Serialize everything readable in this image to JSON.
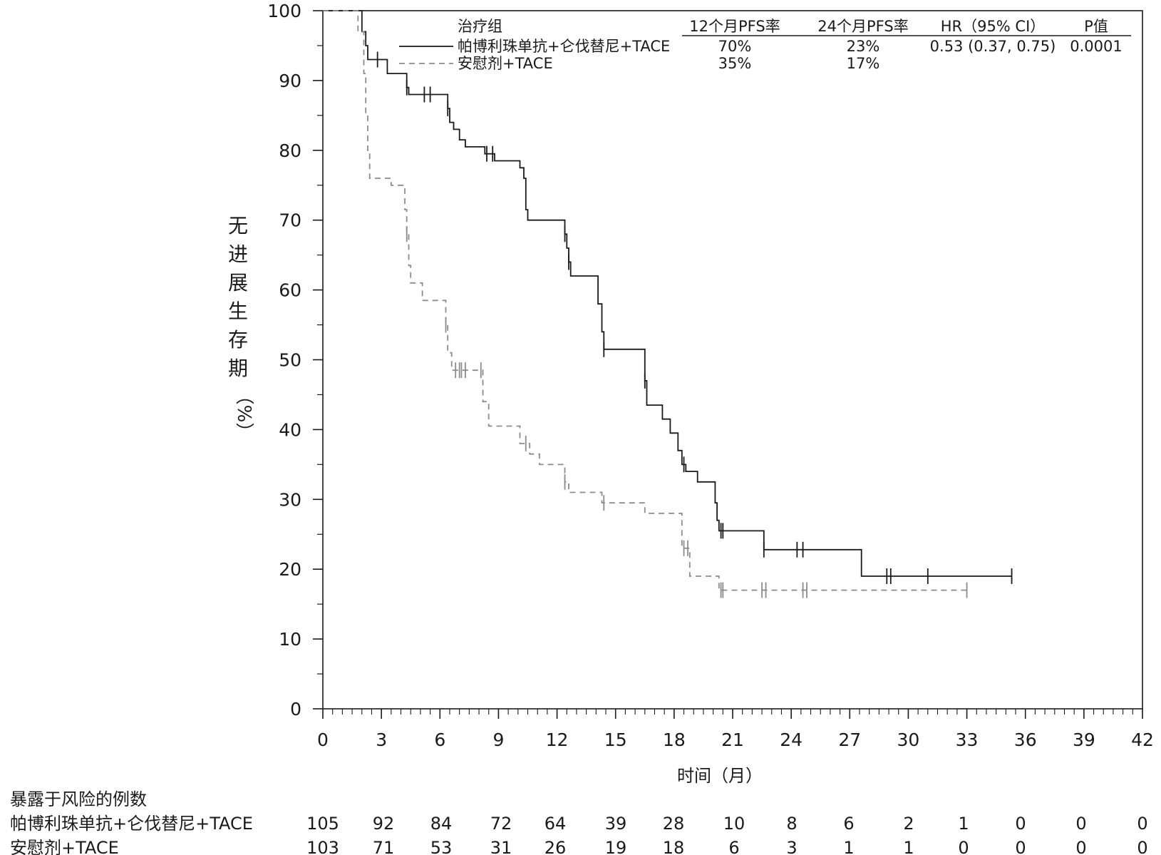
{
  "chart_data": {
    "type": "line",
    "step": true,
    "ylabel_chars": [
      "无",
      "进",
      "展",
      "生",
      "存",
      "期"
    ],
    "ylabel_unit": "（%）",
    "xlabel": "时间（月）",
    "xlim": [
      0,
      42
    ],
    "ylim": [
      0,
      100
    ],
    "x_ticks": [
      0,
      3,
      6,
      9,
      12,
      15,
      18,
      21,
      24,
      27,
      30,
      33,
      36,
      39,
      42
    ],
    "y_ticks": [
      0,
      10,
      20,
      30,
      40,
      50,
      60,
      70,
      80,
      90,
      100
    ],
    "grid": false,
    "legend_placement": "top",
    "legend": {
      "header_group": "治疗组",
      "header_pfs12": "12个月PFS率",
      "header_pfs24": "24个月PFS率",
      "header_hr": "HR（95% CI）",
      "header_p": "P值",
      "hr_value": "0.53 (0.37, 0.75)",
      "p_value": "0.0001"
    },
    "series": [
      {
        "name": "帕博利珠单抗+仑伐替尼+TACE",
        "color": "#1a1a1a",
        "dash": "none",
        "pfs12": "70%",
        "pfs24": "23%",
        "points": [
          [
            0,
            100
          ],
          [
            2,
            100
          ],
          [
            2,
            97
          ],
          [
            2.2,
            97
          ],
          [
            2.2,
            95
          ],
          [
            2.3,
            95
          ],
          [
            2.3,
            93
          ],
          [
            3.3,
            93
          ],
          [
            3.3,
            91
          ],
          [
            4.3,
            91
          ],
          [
            4.3,
            89
          ],
          [
            4.4,
            89
          ],
          [
            4.4,
            88
          ],
          [
            6.4,
            88
          ],
          [
            6.4,
            86
          ],
          [
            6.5,
            86
          ],
          [
            6.5,
            84
          ],
          [
            6.7,
            84
          ],
          [
            6.7,
            83
          ],
          [
            7,
            83
          ],
          [
            7,
            81.5
          ],
          [
            7.3,
            81.5
          ],
          [
            7.3,
            80.5
          ],
          [
            8.3,
            80.5
          ],
          [
            8.3,
            79.5
          ],
          [
            8.8,
            79.5
          ],
          [
            8.8,
            78.5
          ],
          [
            10.1,
            78.5
          ],
          [
            10.1,
            77.5
          ],
          [
            10.3,
            77.5
          ],
          [
            10.3,
            76
          ],
          [
            10.4,
            76
          ],
          [
            10.4,
            71.5
          ],
          [
            10.5,
            71.5
          ],
          [
            10.5,
            70
          ],
          [
            12.4,
            70
          ],
          [
            12.4,
            68
          ],
          [
            12.5,
            68
          ],
          [
            12.5,
            66
          ],
          [
            12.6,
            66
          ],
          [
            12.6,
            64
          ],
          [
            12.7,
            64
          ],
          [
            12.7,
            62
          ],
          [
            14.1,
            62
          ],
          [
            14.1,
            58
          ],
          [
            14.3,
            58
          ],
          [
            14.3,
            54
          ],
          [
            14.4,
            54
          ],
          [
            14.4,
            51.5
          ],
          [
            16.5,
            51.5
          ],
          [
            16.5,
            47
          ],
          [
            16.6,
            47
          ],
          [
            16.6,
            43.5
          ],
          [
            17.4,
            43.5
          ],
          [
            17.4,
            41.5
          ],
          [
            17.8,
            41.5
          ],
          [
            17.8,
            39.5
          ],
          [
            18.2,
            39.5
          ],
          [
            18.2,
            37
          ],
          [
            18.4,
            37
          ],
          [
            18.4,
            35
          ],
          [
            18.6,
            35
          ],
          [
            18.6,
            34
          ],
          [
            19.2,
            34
          ],
          [
            19.2,
            32.5
          ],
          [
            20.1,
            32.5
          ],
          [
            20.1,
            29.5
          ],
          [
            20.2,
            29.5
          ],
          [
            20.2,
            27
          ],
          [
            20.3,
            27
          ],
          [
            20.3,
            25.5
          ],
          [
            22.6,
            25.5
          ],
          [
            22.6,
            22.8
          ],
          [
            27.6,
            22.8
          ],
          [
            27.6,
            19
          ],
          [
            35.3,
            19
          ]
        ],
        "censor_x": [
          2.8,
          4.3,
          5.2,
          5.5,
          6.4,
          8.4,
          8.7,
          12.4,
          12.6,
          14.4,
          16.5,
          18.5,
          20.4,
          20.5,
          22.6,
          24.3,
          24.6,
          28.9,
          29.1,
          31.0,
          35.3
        ]
      },
      {
        "name": "安慰剂+TACE",
        "color": "#8c8c8c",
        "dash": "8,6",
        "pfs12": "35%",
        "pfs24": "17%",
        "points": [
          [
            0,
            100
          ],
          [
            1.8,
            100
          ],
          [
            1.8,
            97
          ],
          [
            2.1,
            97
          ],
          [
            2.1,
            91
          ],
          [
            2.2,
            91
          ],
          [
            2.2,
            85
          ],
          [
            2.3,
            85
          ],
          [
            2.3,
            80
          ],
          [
            2.4,
            80
          ],
          [
            2.4,
            76
          ],
          [
            3.5,
            76
          ],
          [
            3.5,
            75
          ],
          [
            4.2,
            75
          ],
          [
            4.2,
            71.5
          ],
          [
            4.3,
            71.5
          ],
          [
            4.3,
            68
          ],
          [
            4.4,
            68
          ],
          [
            4.4,
            63.5
          ],
          [
            4.5,
            63.5
          ],
          [
            4.5,
            61
          ],
          [
            5.1,
            61
          ],
          [
            5.1,
            58.5
          ],
          [
            6.3,
            58.5
          ],
          [
            6.3,
            55
          ],
          [
            6.4,
            55
          ],
          [
            6.4,
            51
          ],
          [
            6.6,
            51
          ],
          [
            6.6,
            48.5
          ],
          [
            8.2,
            48.5
          ],
          [
            8.2,
            44
          ],
          [
            8.5,
            44
          ],
          [
            8.5,
            40.5
          ],
          [
            10.1,
            40.5
          ],
          [
            10.1,
            38
          ],
          [
            10.6,
            38
          ],
          [
            10.6,
            36.5
          ],
          [
            11.1,
            36.5
          ],
          [
            11.1,
            35
          ],
          [
            12.4,
            35
          ],
          [
            12.4,
            32.5
          ],
          [
            12.6,
            32.5
          ],
          [
            12.6,
            31
          ],
          [
            14.3,
            31
          ],
          [
            14.3,
            29.5
          ],
          [
            16.5,
            29.5
          ],
          [
            16.5,
            28
          ],
          [
            18.4,
            28
          ],
          [
            18.4,
            23
          ],
          [
            18.8,
            23
          ],
          [
            18.8,
            19
          ],
          [
            20.3,
            19
          ],
          [
            20.3,
            17
          ],
          [
            33,
            17
          ]
        ],
        "censor_x": [
          4.3,
          6.3,
          6.8,
          7.0,
          7.1,
          7.3,
          8.1,
          10.4,
          12.4,
          14.4,
          18.5,
          18.7,
          20.4,
          20.5,
          22.5,
          22.7,
          24.6,
          24.8,
          33.0
        ]
      }
    ],
    "risk_table": {
      "title": "暴露于风险的例数",
      "rows": [
        {
          "name": "帕博利珠单抗+仑伐替尼+TACE",
          "values": [
            "105",
            "92",
            "84",
            "72",
            "64",
            "39",
            "28",
            "10",
            "8",
            "6",
            "2",
            "1",
            "0",
            "0",
            "0"
          ]
        },
        {
          "name": "安慰剂+TACE",
          "values": [
            "103",
            "71",
            "53",
            "31",
            "26",
            "19",
            "18",
            "6",
            "3",
            "1",
            "1",
            "0",
            "0",
            "0",
            "0"
          ]
        }
      ]
    }
  }
}
